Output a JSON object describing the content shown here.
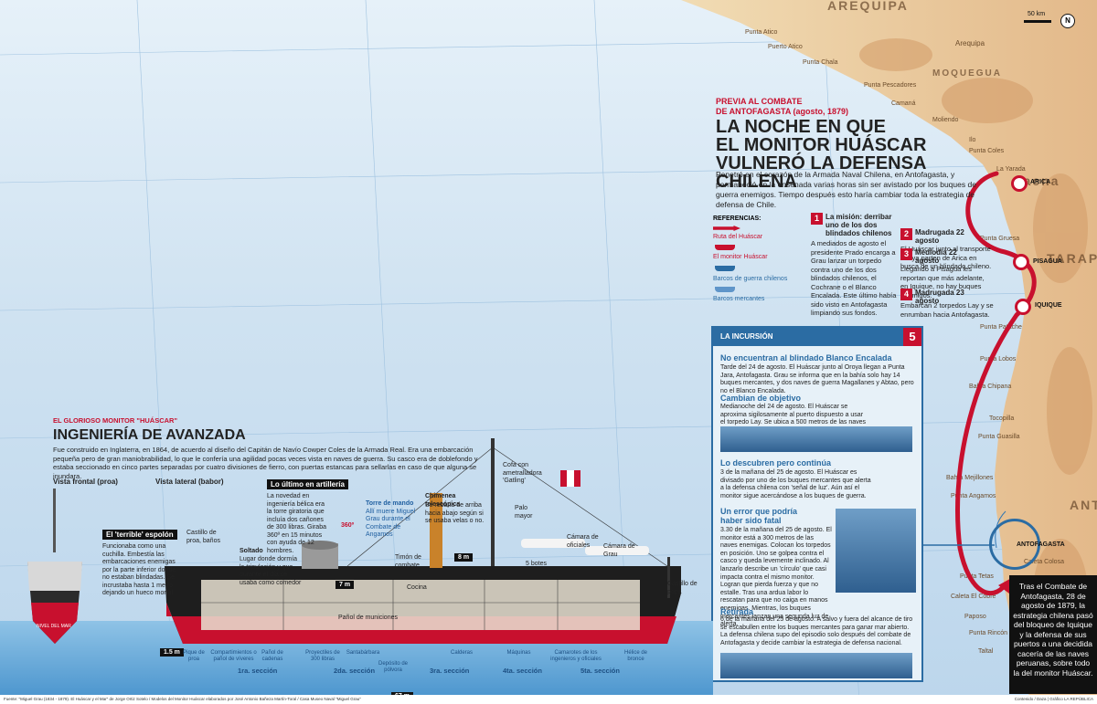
{
  "map": {
    "scale_label": "50 km",
    "north": "N",
    "places": {
      "arequipa_region": "AREQUIPA",
      "arequipa_city": "Arequipa",
      "moquegua": "MOQUEGUA",
      "tacna": "Tacna",
      "tarapaca": "TARAPAC",
      "antofagasta_region": "ANTOF",
      "small": [
        "Punta Atico",
        "Puerto Atico",
        "Punta Chala",
        "Punta Pescadores",
        "Camaná",
        "Moliendo",
        "Ilo",
        "Punta Coles",
        "La Yarada",
        "Punta Gruesa",
        "Punta Patache",
        "Punta Lobos",
        "Bahía Chipana",
        "Tocopilla",
        "Punta Guasilla",
        "Bahía Mejillones",
        "Punta Angamos",
        "Caleta Colosa",
        "Punta Tetas",
        "Caleta El Cobre",
        "Paposo",
        "Punta Rincón",
        "Taltal"
      ]
    },
    "markers": [
      {
        "id": "arica",
        "label": "ARICA"
      },
      {
        "id": "pisagua",
        "label": "PISAGUA"
      },
      {
        "id": "iquique",
        "label": "IQUIQUE"
      },
      {
        "id": "antofagasta",
        "label": "ANTOFAGASTA"
      }
    ]
  },
  "header": {
    "kicker": "PREVIA AL COMBATE\nDE ANTOFAGASTA (agosto, 1879)",
    "kicker_line1": "PREVIA AL COMBATE",
    "kicker_line2": "DE ANTOFAGASTA (agosto, 1879)",
    "title_line1": "LA NOCHE EN QUE",
    "title_line2": "EL MONITOR HUÁSCAR",
    "title_line3": "VULNERÓ LA DEFENSA CHILENA",
    "intro": "Penetró en el corazón de la Armada Naval Chilena, en Antofagasta, y permaneció en la ensenada varias horas sin ser avistado por los buques de guerra enemigos. Tiempo después esto haría cambiar toda la estrategia de defensa de Chile."
  },
  "references": {
    "title": "REFERENCIAS:",
    "items": [
      {
        "label": "Ruta del Huáscar",
        "color": "#c8102e"
      },
      {
        "label": "El monitor Huáscar",
        "color": "#c8102e"
      },
      {
        "label": "Barcos de guerra chilenos",
        "color": "#2b6ca3"
      },
      {
        "label": "Barcos mercantes",
        "color": "#5f95c9"
      }
    ]
  },
  "steps": [
    {
      "num": "1",
      "title": "La misión: derribar uno de los dos blindados chilenos",
      "text": "A mediados de agosto el presidente Prado encarga a Grau lanzar un torpedo contra uno de los dos blindados chilenos, el Cochrane o el Blanco Encalada. Este último había sido visto en Antofagasta limpiando sus fondos."
    },
    {
      "num": "2",
      "title": "Madrugada 22 agosto",
      "text": "El Huáscar junto al transporte Oroya parten de Arica en busca de un blindado chileno."
    },
    {
      "num": "3",
      "title": "Mediodía 22 agosto",
      "text": "Llegando a Pisagua les reportan que más adelante, en Iquique, no hay buques enemigos."
    },
    {
      "num": "4",
      "title": "Madrugada 23 agosto",
      "text": "Embarcan 2 torpedos Lay y se enrumban hacia Antofagasta."
    }
  ],
  "incursion": {
    "header": "LA INCURSIÓN",
    "num": "5",
    "blocks": [
      {
        "title": "No encuentran al blindado Blanco Encalada",
        "text": "Tarde del 24 de agosto. El Huáscar junto al Oroya llegan a Punta Jara, Antofagasta. Grau se informa que en la bahía solo hay 14 buques mercantes, y dos naves de guerra Magallanes y Abtao, pero no el Blanco Encalada."
      },
      {
        "title": "Cambian de objetivo",
        "text": "Medianoche del 24 de agosto. El Huáscar se aproxima sigilosamente al puerto dispuesto a usar el torpedo Lay. Se ubica a 500 metros de las naves de guerra."
      },
      {
        "title": "Lo descubren pero continúa",
        "text": "3 de la mañana del 25 de agosto. El Huáscar es divisado por uno de los buques mercantes que alerta a la defensa chilena con 'señal de luz'. Aún así el monitor sigue acercándose a los buques de guerra."
      },
      {
        "title": "Un error que podría haber sido fatal",
        "text": "3.30 de la mañana del 25 de agosto. El monitor está a 300 metros de las naves enemigas. Colocan los torpedos en posición. Uno se golpea contra el casco y queda levemente inclinado. Al lanzarlo describe un 'círculo' que casi impacta contra el mismo monitor. Logran que pierda fuerza y que no estalle. Tras una ardua labor lo rescatan para que no caiga en manos enemigas. Mientras, los buques mercantes lanzan una segunda luz de alerta."
      },
      {
        "title": "Retirada",
        "text": "6 de la mañana del 25 de agosto. A salvo y fuera del alcance de tiro se escabullen entre los buques mercantes para ganar mar abierto. La defensa chilena supo del episodio solo después del combate de Antofagasta y decide cambiar la estrategia de defensa nacional."
      }
    ]
  },
  "final_note": "Tras el Combate de Antofagasta, 28 de agosto de 1879, la estrategia chilena pasó del bloqueo de Iquique y la defensa de sus puertos a una decidida cacería de las naves peruanas, sobre todo la del monitor Huáscar.",
  "ship": {
    "kicker": "EL GLORIOSO MONITOR \"HUÁSCAR\"",
    "title": "INGENIERÍA DE AVANZADA",
    "intro": "Fue construido en Inglaterra, en 1864, de acuerdo al diseño del Capitán de Navío Cowper Coles de la Armada Real. Era una embarcación pequeña pero de gran maniobrabilidad, lo que le confería una agilidad pocas veces vista en naves de guerra. Su casco era de doblefondo y estaba seccionado en cinco partes separadas por cuatro divisiones de fierro, con puertas estancas para sellarlas en caso de que alguna se inundara.",
    "view_front": "Vista  frontal (proa)",
    "view_side": "Vista lateral (babor)",
    "espolon_title": "El 'terrible' espolón",
    "espolon_text": "Funcionaba como una cuchilla. Embestía las embarcaciones enemigas por la parte inferior donde no estaban blindadas. Se incrustaba hasta 1 metro dejando un hueco mortal.",
    "artilleria_title": "Lo último en artillería",
    "artilleria_text": "La novedad en ingeniería bélica era la torre giratoria que incluía dos cañones de 300 libras. Giraba 360º en 15 minutos con ayuda de 12 hombres.",
    "torre_title": "Torre de mando",
    "torre_text": "Allí muere Miguel Grau durante el Combate de Angamos",
    "chimenea": "Chimenea telescópica",
    "chimenea_text": "Se rebatía de arriba hacia abajo según si se usaba velas o no.",
    "cofa": "Cofa con ametralladora 'Gatling'",
    "palo": "Palo mayor",
    "camara_oficiales": "Cámara de oficiales",
    "camara_grau": "Cámara de Grau",
    "castillo_proa": "Castillo de proa, baños",
    "castillo_popa": "Castillo de popa",
    "soltado": "Soltado",
    "soltado_text": "Lugar donde dormía la tripulación y que durante el día se usaba como comedor",
    "timon": "Timón de combate",
    "botes": "5 botes",
    "cocina": "Cocina",
    "polvo": "Pañol de municiones",
    "nivel_mar": "NIVEL DEL MAR",
    "deg_label": "360º",
    "dim_7m": "7 m",
    "dim_8m": "8 m",
    "dim_15m": "1.5 m",
    "dim_67m": "67 m",
    "components": [
      "Pique de proa",
      "Compartimientos o pañol de víveres",
      "Pañol de cadenas",
      "Proyectiles de 300 libras",
      "Santabárbara",
      "Depósito de pólvora",
      "Calderas",
      "Máquinas",
      "Camarotes de los ingenieros y oficiales",
      "Hélice de bronce"
    ],
    "sections": [
      "1ra. sección",
      "2da. sección",
      "3ra. sección",
      "4ta. sección",
      "5ta. sección"
    ]
  },
  "credits": {
    "left": "Fuente: \"Miguel Grau (1834 - 1879). El Huáscar y el Mar\" de Jorge Ortiz Sotelo / Modelos del Monitor Huáscar elaborados por José Antonio Bañeza Martín-Toral / Casa Museo Naval \"Miguel Grau\"",
    "right": "Contenido / Daza | Gráfico LA REPÚBLICA"
  }
}
